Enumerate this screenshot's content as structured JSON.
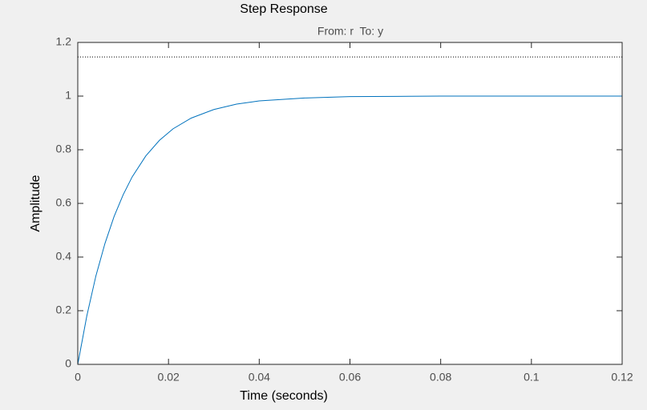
{
  "chart_data": {
    "type": "line",
    "title": "Step Response",
    "subtitle": "From: r  To: y",
    "xlabel": "Time (seconds)",
    "ylabel": "Amplitude",
    "x": [
      0,
      0.002,
      0.004,
      0.006,
      0.008,
      0.01,
      0.012,
      0.015,
      0.018,
      0.021,
      0.025,
      0.03,
      0.035,
      0.04,
      0.05,
      0.06,
      0.07,
      0.08,
      0.1,
      0.12
    ],
    "series": [
      {
        "name": "y",
        "color": "#0072bd",
        "values": [
          0,
          0.181,
          0.33,
          0.451,
          0.551,
          0.632,
          0.699,
          0.777,
          0.835,
          0.878,
          0.918,
          0.95,
          0.97,
          0.982,
          0.993,
          0.998,
          0.999,
          1,
          1,
          1
        ]
      }
    ],
    "reference_lines": [
      1.146
    ],
    "xlim": [
      0,
      0.12
    ],
    "xticks": [
      0,
      0.02,
      0.04,
      0.06,
      0.08,
      0.1,
      0.12
    ],
    "ylim": [
      0,
      1.2
    ],
    "yticks": [
      0,
      0.2,
      0.4,
      0.6,
      0.8,
      1,
      1.2
    ],
    "grid": false
  }
}
